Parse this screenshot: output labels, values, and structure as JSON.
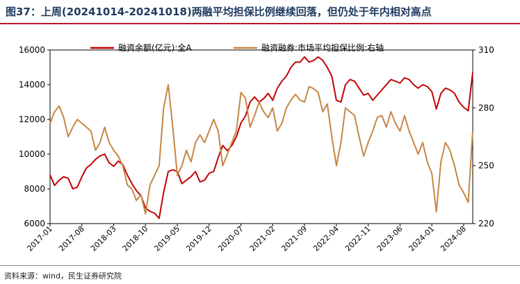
{
  "header": {
    "title": "图37：上周(20241014-20241018)两融平均担保比例继续回落，但仍处于年内相对高点"
  },
  "footer": {
    "source": "资料来源：wind，民生证券研究院"
  },
  "colors": {
    "title": "#1f3a5f",
    "rule": "#b5172b",
    "series_margin_balance": "#c00000",
    "series_collateral_ratio": "#c68645"
  },
  "chart_data": {
    "type": "line",
    "title": "",
    "x_ticks": [
      "2017-01",
      "2017-08",
      "2018-03",
      "2018-10",
      "2019-05",
      "2019-12",
      "2020-07",
      "2021-02",
      "2021-09",
      "2022-04",
      "2022-11",
      "2023-06",
      "2024-01",
      "2024-08"
    ],
    "y_left": {
      "label": "",
      "ylim": [
        6000,
        16000
      ],
      "ticks": [
        "6000",
        "8000",
        "10000",
        "12000",
        "14000",
        "16000"
      ]
    },
    "y_right": {
      "label": "",
      "ylim": [
        220,
        310
      ],
      "ticks": [
        "220",
        "250",
        "280",
        "310"
      ]
    },
    "legend": [
      "融资余额(亿元):全A",
      "融资融券:市场平均担保比例:右轴"
    ],
    "x_range": [
      "2017-01",
      "2024-10"
    ],
    "series": [
      {
        "name": "融资余额(亿元):全A",
        "axis": "left",
        "points": [
          [
            "2017-01",
            8800
          ],
          [
            "2017-02",
            8200
          ],
          [
            "2017-03",
            8500
          ],
          [
            "2017-04",
            8700
          ],
          [
            "2017-05",
            8600
          ],
          [
            "2017-06",
            8000
          ],
          [
            "2017-07",
            8100
          ],
          [
            "2017-08",
            8700
          ],
          [
            "2017-09",
            9200
          ],
          [
            "2017-10",
            9400
          ],
          [
            "2017-11",
            9700
          ],
          [
            "2017-12",
            9900
          ],
          [
            "2018-01",
            10000
          ],
          [
            "2018-02",
            9500
          ],
          [
            "2018-03",
            9300
          ],
          [
            "2018-04",
            9600
          ],
          [
            "2018-05",
            9400
          ],
          [
            "2018-06",
            8800
          ],
          [
            "2018-07",
            8300
          ],
          [
            "2018-08",
            7900
          ],
          [
            "2018-09",
            7600
          ],
          [
            "2018-10",
            6900
          ],
          [
            "2018-11",
            6700
          ],
          [
            "2018-12",
            6600
          ],
          [
            "2019-01",
            6300
          ],
          [
            "2019-02",
            7800
          ],
          [
            "2019-03",
            9000
          ],
          [
            "2019-04",
            9100
          ],
          [
            "2019-05",
            9000
          ],
          [
            "2019-06",
            8300
          ],
          [
            "2019-07",
            8500
          ],
          [
            "2019-08",
            8700
          ],
          [
            "2019-09",
            9000
          ],
          [
            "2019-10",
            8400
          ],
          [
            "2019-11",
            8500
          ],
          [
            "2019-12",
            8900
          ],
          [
            "2020-01",
            9000
          ],
          [
            "2020-02",
            9800
          ],
          [
            "2020-03",
            10500
          ],
          [
            "2020-04",
            10200
          ],
          [
            "2020-05",
            10500
          ],
          [
            "2020-06",
            11000
          ],
          [
            "2020-07",
            11800
          ],
          [
            "2020-08",
            12200
          ],
          [
            "2020-09",
            13000
          ],
          [
            "2020-10",
            13300
          ],
          [
            "2020-11",
            13000
          ],
          [
            "2020-12",
            13200
          ],
          [
            "2021-01",
            13500
          ],
          [
            "2021-02",
            13100
          ],
          [
            "2021-03",
            13800
          ],
          [
            "2021-04",
            14200
          ],
          [
            "2021-05",
            14500
          ],
          [
            "2021-06",
            15000
          ],
          [
            "2021-07",
            15300
          ],
          [
            "2021-08",
            15300
          ],
          [
            "2021-09",
            15600
          ],
          [
            "2021-10",
            15300
          ],
          [
            "2021-11",
            15400
          ],
          [
            "2021-12",
            15600
          ],
          [
            "2022-01",
            15400
          ],
          [
            "2022-02",
            15000
          ],
          [
            "2022-03",
            14500
          ],
          [
            "2022-04",
            13100
          ],
          [
            "2022-05",
            13000
          ],
          [
            "2022-06",
            14000
          ],
          [
            "2022-07",
            14300
          ],
          [
            "2022-08",
            14200
          ],
          [
            "2022-09",
            13800
          ],
          [
            "2022-10",
            13400
          ],
          [
            "2022-11",
            13500
          ],
          [
            "2022-12",
            13100
          ],
          [
            "2023-01",
            13400
          ],
          [
            "2023-02",
            13700
          ],
          [
            "2023-03",
            14000
          ],
          [
            "2023-04",
            14300
          ],
          [
            "2023-05",
            14200
          ],
          [
            "2023-06",
            14100
          ],
          [
            "2023-07",
            14400
          ],
          [
            "2023-08",
            14300
          ],
          [
            "2023-09",
            14000
          ],
          [
            "2023-10",
            13800
          ],
          [
            "2023-11",
            14000
          ],
          [
            "2023-12",
            13900
          ],
          [
            "2024-01",
            13600
          ],
          [
            "2024-02",
            12600
          ],
          [
            "2024-03",
            13500
          ],
          [
            "2024-04",
            13800
          ],
          [
            "2024-05",
            13700
          ],
          [
            "2024-06",
            13500
          ],
          [
            "2024-07",
            13000
          ],
          [
            "2024-08",
            12700
          ],
          [
            "2024-09",
            12500
          ],
          [
            "2024-10",
            14700
          ]
        ]
      },
      {
        "name": "融资融券:市场平均担保比例:右轴",
        "axis": "right",
        "points": [
          [
            "2017-01",
            272
          ],
          [
            "2017-02",
            278
          ],
          [
            "2017-03",
            281
          ],
          [
            "2017-04",
            275
          ],
          [
            "2017-05",
            265
          ],
          [
            "2017-06",
            270
          ],
          [
            "2017-07",
            274
          ],
          [
            "2017-08",
            272
          ],
          [
            "2017-09",
            270
          ],
          [
            "2017-10",
            268
          ],
          [
            "2017-11",
            258
          ],
          [
            "2017-12",
            262
          ],
          [
            "2018-01",
            270
          ],
          [
            "2018-02",
            262
          ],
          [
            "2018-03",
            258
          ],
          [
            "2018-04",
            255
          ],
          [
            "2018-05",
            250
          ],
          [
            "2018-06",
            240
          ],
          [
            "2018-07",
            238
          ],
          [
            "2018-08",
            232
          ],
          [
            "2018-09",
            235
          ],
          [
            "2018-10",
            225
          ],
          [
            "2018-11",
            240
          ],
          [
            "2018-12",
            245
          ],
          [
            "2019-01",
            250
          ],
          [
            "2019-02",
            280
          ],
          [
            "2019-03",
            292
          ],
          [
            "2019-04",
            270
          ],
          [
            "2019-05",
            245
          ],
          [
            "2019-06",
            250
          ],
          [
            "2019-07",
            258
          ],
          [
            "2019-08",
            252
          ],
          [
            "2019-09",
            262
          ],
          [
            "2019-10",
            266
          ],
          [
            "2019-11",
            262
          ],
          [
            "2019-12",
            268
          ],
          [
            "2020-01",
            274
          ],
          [
            "2020-02",
            268
          ],
          [
            "2020-03",
            250
          ],
          [
            "2020-04",
            256
          ],
          [
            "2020-05",
            262
          ],
          [
            "2020-06",
            268
          ],
          [
            "2020-07",
            288
          ],
          [
            "2020-08",
            285
          ],
          [
            "2020-09",
            270
          ],
          [
            "2020-10",
            276
          ],
          [
            "2020-11",
            283
          ],
          [
            "2020-12",
            278
          ],
          [
            "2021-01",
            275
          ],
          [
            "2021-02",
            280
          ],
          [
            "2021-03",
            268
          ],
          [
            "2021-04",
            272
          ],
          [
            "2021-05",
            280
          ],
          [
            "2021-06",
            284
          ],
          [
            "2021-07",
            287
          ],
          [
            "2021-08",
            284
          ],
          [
            "2021-09",
            283
          ],
          [
            "2021-10",
            291
          ],
          [
            "2021-11",
            290
          ],
          [
            "2021-12",
            288
          ],
          [
            "2022-01",
            278
          ],
          [
            "2022-02",
            282
          ],
          [
            "2022-03",
            265
          ],
          [
            "2022-04",
            250
          ],
          [
            "2022-05",
            262
          ],
          [
            "2022-06",
            280
          ],
          [
            "2022-07",
            278
          ],
          [
            "2022-08",
            276
          ],
          [
            "2022-09",
            265
          ],
          [
            "2022-10",
            255
          ],
          [
            "2022-11",
            262
          ],
          [
            "2022-12",
            268
          ],
          [
            "2023-01",
            275
          ],
          [
            "2023-02",
            276
          ],
          [
            "2023-03",
            270
          ],
          [
            "2023-04",
            278
          ],
          [
            "2023-05",
            272
          ],
          [
            "2023-06",
            268
          ],
          [
            "2023-07",
            276
          ],
          [
            "2023-08",
            268
          ],
          [
            "2023-09",
            262
          ],
          [
            "2023-10",
            256
          ],
          [
            "2023-11",
            262
          ],
          [
            "2023-12",
            252
          ],
          [
            "2024-01",
            246
          ],
          [
            "2024-02",
            226
          ],
          [
            "2024-03",
            252
          ],
          [
            "2024-04",
            262
          ],
          [
            "2024-05",
            258
          ],
          [
            "2024-06",
            250
          ],
          [
            "2024-07",
            240
          ],
          [
            "2024-08",
            236
          ],
          [
            "2024-09",
            231
          ],
          [
            "2024-10",
            268
          ]
        ]
      }
    ]
  }
}
